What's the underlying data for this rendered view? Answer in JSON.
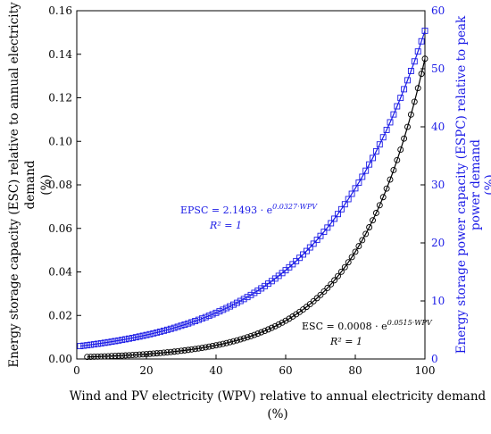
{
  "chart_data": {
    "type": "scatter",
    "x": {
      "label": "Wind and PV electricity (WPV) relative to annual electricity demand (%)",
      "label_lines": [
        "Wind and PV electricity (WPV) relative to annual electricity demand",
        "(%)"
      ],
      "range": [
        0,
        100
      ],
      "ticks": [
        "0",
        "20",
        "40",
        "60",
        "80",
        "100"
      ]
    },
    "y_left": {
      "label": "Energy storage capacity (ESC) relative to annual electricity demand (%)",
      "label_lines": [
        "Energy storage capacity (ESC) relative to annual electricity",
        "demand",
        "(%)"
      ],
      "range": [
        0,
        0.16
      ],
      "ticks": [
        "0.00",
        "0.02",
        "0.04",
        "0.06",
        "0.08",
        "0.10",
        "0.12",
        "0.14",
        "0.16"
      ]
    },
    "y_right": {
      "label": "Energy storage power capacity (ESPC) relative to peak power demand (%)",
      "label_lines": [
        "Energy storage power capacity (ESPC) relative to peak",
        "power demand",
        "(%)"
      ],
      "range": [
        0,
        60
      ],
      "ticks": [
        "0",
        "10",
        "20",
        "30",
        "40",
        "50",
        "60"
      ]
    },
    "series": [
      {
        "name": "ESC",
        "axis": "left",
        "marker": "circle",
        "color": "#000000",
        "fit": {
          "a": 0.0008,
          "b": 0.0515
        },
        "x_start": 3,
        "x_end": 100,
        "x_step": 1,
        "equation": {
          "lhs": "ESC = 0.0008 · e",
          "exp": "0.0515·WPV",
          "r2": "R² = 1"
        }
      },
      {
        "name": "EPSC",
        "axis": "right",
        "marker": "square",
        "color": "#1a1ae6",
        "fit": {
          "a": 2.1493,
          "b": 0.0327
        },
        "x_start": 1,
        "x_end": 100,
        "x_step": 1,
        "equation": {
          "lhs": "EPSC = 2.1493 · e",
          "exp": "0.0327·WPV",
          "r2": "R² = 1"
        }
      }
    ]
  }
}
